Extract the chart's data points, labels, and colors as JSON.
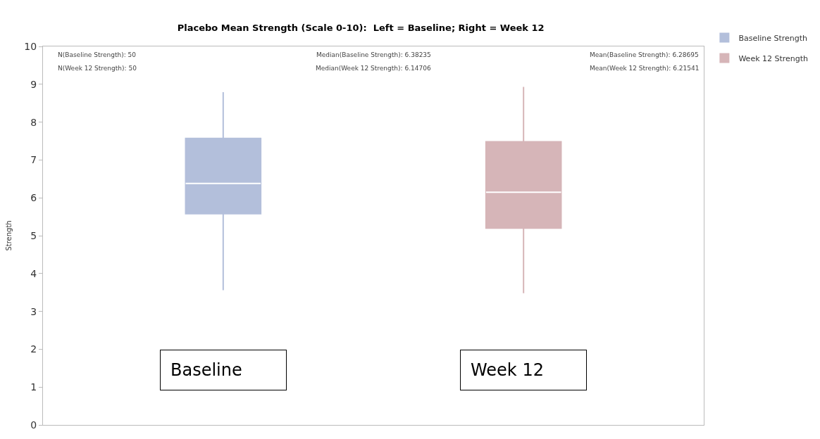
{
  "chart_data": {
    "type": "box",
    "title": "Placebo Mean Strength (Scale 0-10):  Left = Baseline; Right = Week 12",
    "ylabel": "Strength",
    "categories": [
      null,
      null
    ],
    "series": [
      {
        "name": "Baseline Strength",
        "color": "#b3bfdb",
        "boxes": [
          {
            "low": 3.56,
            "q1": 5.58,
            "median": 6.38235,
            "q3": 7.57,
            "high": 8.79
          },
          null
        ]
      },
      {
        "name": "Week 12 Strength",
        "color": "#d6b5b8",
        "boxes": [
          null,
          {
            "low": 3.48,
            "q1": 5.2,
            "median": 6.14706,
            "q3": 7.48,
            "high": 8.93
          }
        ]
      }
    ],
    "ylim": [
      0,
      10
    ],
    "yticks": [
      0,
      1,
      2,
      3,
      4,
      5,
      6,
      7,
      8,
      9,
      10
    ],
    "legend": "top right",
    "annotations": [
      "N(Baseline Strength): 50",
      "N(Week 12 Strength): 50",
      "Median(Baseline Strength): 6.38235",
      "Median(Week 12 Strength): 6.14706",
      "Mean(Baseline Strength): 6.28695",
      "Mean(Week 12 Strength): 6.21541",
      "Baseline",
      "Week 12"
    ]
  }
}
